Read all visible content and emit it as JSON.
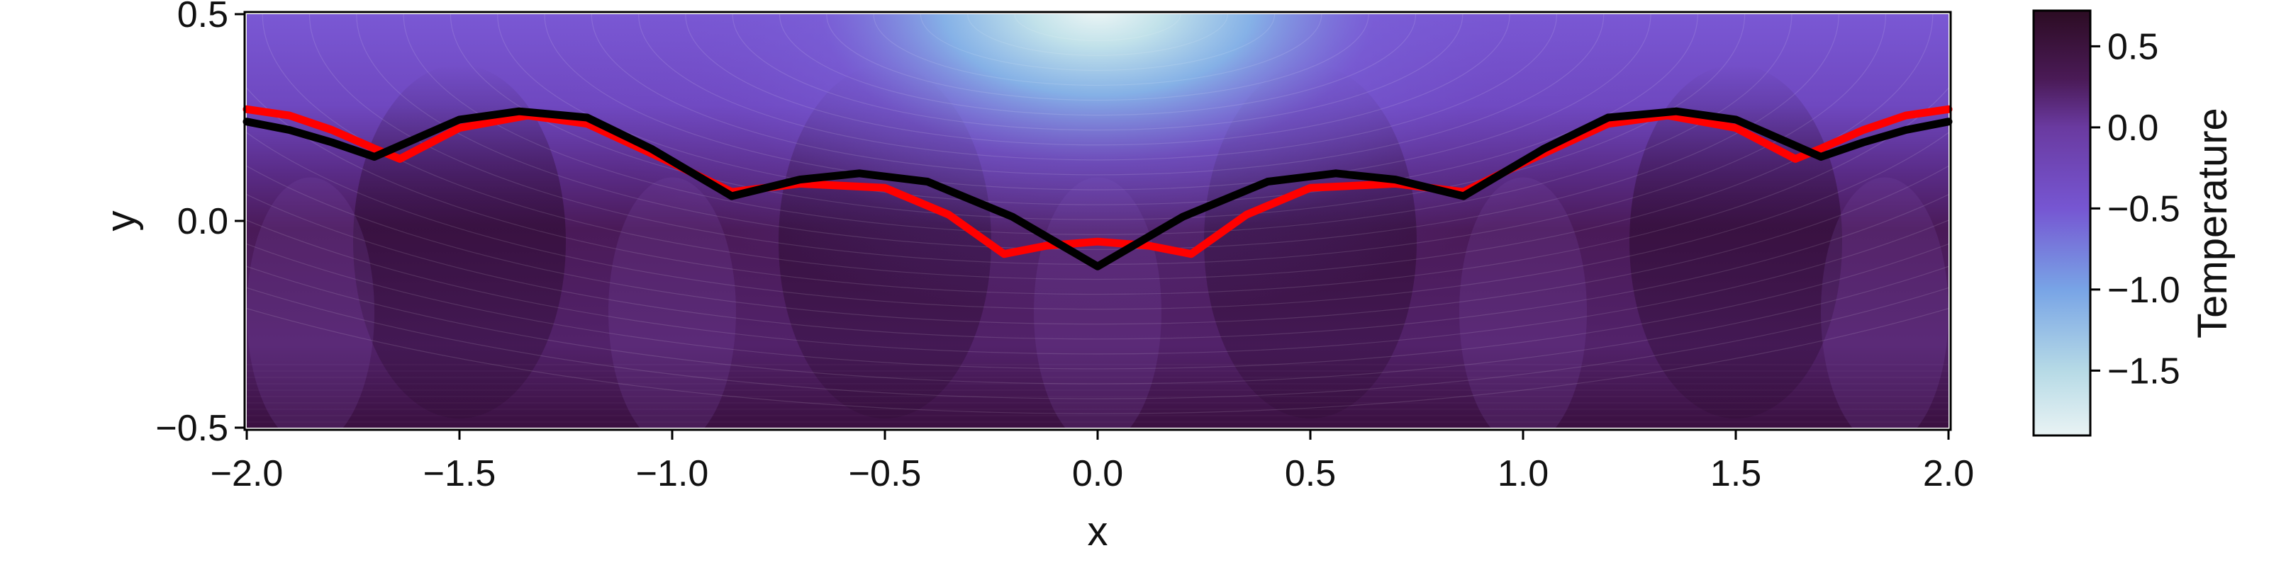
{
  "chart_data": {
    "type": "heatmap",
    "title": "",
    "xlabel": "x",
    "ylabel": "y",
    "xlim": [
      -2.0,
      2.0
    ],
    "ylim": [
      -0.5,
      0.5
    ],
    "xticks": [
      -2.0,
      -1.5,
      -1.0,
      -0.5,
      0.0,
      0.5,
      1.0,
      1.5,
      2.0
    ],
    "xtick_labels": [
      "−2.0",
      "−1.5",
      "−1.0",
      "−0.5",
      "0.0",
      "0.5",
      "1.0",
      "1.5",
      "2.0"
    ],
    "yticks": [
      -0.5,
      0.0,
      0.5
    ],
    "ytick_labels": [
      "−0.5",
      "0.0",
      "0.5"
    ],
    "grid": false,
    "field": {
      "quantity": "Temperature",
      "description": "filled contour map; cold spot centred near (0, 0.5) under the top boundary, warm plumes in the lower layer",
      "cold_center": [
        0.0,
        0.5
      ],
      "min": -1.9,
      "max": 0.72
    },
    "colorbar": {
      "label": "Temperature",
      "range": [
        -1.9,
        0.72
      ],
      "ticks": [
        0.5,
        0.0,
        -0.5,
        -1.0,
        -1.5
      ],
      "tick_labels": [
        "0.5",
        "0.0",
        "−0.5",
        "−1.0",
        "−1.5"
      ],
      "stops": [
        {
          "v": -1.9,
          "color": "#e9f3f4"
        },
        {
          "v": -1.5,
          "color": "#b6dae6"
        },
        {
          "v": -1.0,
          "color": "#78a4e6"
        },
        {
          "v": -0.5,
          "color": "#7656d2"
        },
        {
          "v": 0.0,
          "color": "#6a3aa0"
        },
        {
          "v": 0.3,
          "color": "#4a1a56"
        },
        {
          "v": 0.72,
          "color": "#2c0c23"
        }
      ]
    },
    "series": [
      {
        "color": "#ff0000",
        "points": [
          [
            -2.0,
            0.27
          ],
          [
            -1.9,
            0.255
          ],
          [
            -1.8,
            0.22
          ],
          [
            -1.7,
            0.175
          ],
          [
            -1.64,
            0.15
          ],
          [
            -1.5,
            0.225
          ],
          [
            -1.34,
            0.255
          ],
          [
            -1.2,
            0.235
          ],
          [
            -1.0,
            0.14
          ],
          [
            -0.86,
            0.07
          ],
          [
            -0.7,
            0.09
          ],
          [
            -0.5,
            0.08
          ],
          [
            -0.35,
            0.015
          ],
          [
            -0.22,
            -0.08
          ],
          [
            -0.12,
            -0.06
          ],
          [
            0.0,
            -0.05
          ],
          [
            0.12,
            -0.06
          ],
          [
            0.22,
            -0.08
          ],
          [
            0.35,
            0.015
          ],
          [
            0.5,
            0.08
          ],
          [
            0.7,
            0.09
          ],
          [
            0.86,
            0.07
          ],
          [
            1.0,
            0.14
          ],
          [
            1.2,
            0.235
          ],
          [
            1.34,
            0.255
          ],
          [
            1.5,
            0.225
          ],
          [
            1.64,
            0.15
          ],
          [
            1.7,
            0.175
          ],
          [
            1.8,
            0.22
          ],
          [
            1.9,
            0.255
          ],
          [
            2.0,
            0.27
          ]
        ]
      },
      {
        "color": "#000000",
        "points": [
          [
            -2.0,
            0.24
          ],
          [
            -1.9,
            0.22
          ],
          [
            -1.8,
            0.19
          ],
          [
            -1.7,
            0.155
          ],
          [
            -1.6,
            0.2
          ],
          [
            -1.5,
            0.245
          ],
          [
            -1.36,
            0.265
          ],
          [
            -1.2,
            0.25
          ],
          [
            -1.05,
            0.175
          ],
          [
            -0.86,
            0.06
          ],
          [
            -0.7,
            0.1
          ],
          [
            -0.56,
            0.115
          ],
          [
            -0.4,
            0.095
          ],
          [
            -0.2,
            0.01
          ],
          [
            -0.1,
            -0.05
          ],
          [
            0.0,
            -0.11
          ],
          [
            0.1,
            -0.05
          ],
          [
            0.2,
            0.01
          ],
          [
            0.4,
            0.095
          ],
          [
            0.56,
            0.115
          ],
          [
            0.7,
            0.1
          ],
          [
            0.86,
            0.06
          ],
          [
            1.05,
            0.175
          ],
          [
            1.2,
            0.25
          ],
          [
            1.36,
            0.265
          ],
          [
            1.5,
            0.245
          ],
          [
            1.6,
            0.2
          ],
          [
            1.7,
            0.155
          ],
          [
            1.8,
            0.19
          ],
          [
            1.9,
            0.22
          ],
          [
            2.0,
            0.24
          ]
        ]
      }
    ]
  }
}
